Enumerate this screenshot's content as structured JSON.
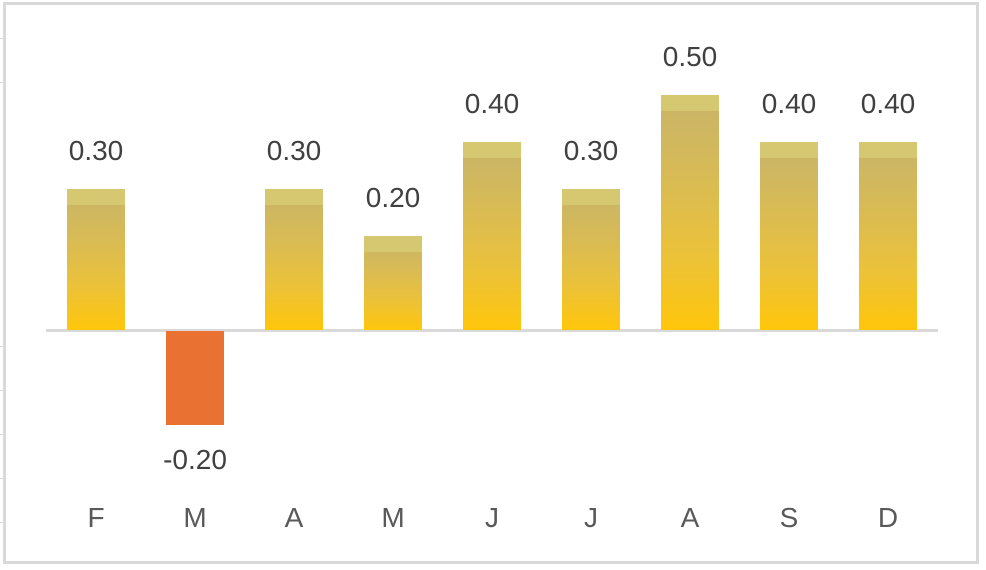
{
  "chart_data": {
    "type": "bar",
    "title": "",
    "xlabel": "",
    "ylabel": "",
    "categories": [
      "F",
      "M",
      "A",
      "M",
      "J",
      "J",
      "A",
      "S",
      "D"
    ],
    "values": [
      0.3,
      -0.2,
      0.3,
      0.2,
      0.4,
      0.3,
      0.5,
      0.4,
      0.4
    ],
    "value_labels": [
      "0.30",
      "-0.20",
      "0.30",
      "0.20",
      "0.40",
      "0.30",
      "0.50",
      "0.40",
      "0.40"
    ],
    "ylim": [
      -0.25,
      0.6
    ],
    "grid": false,
    "legend": null,
    "colors": {
      "positive_gradient_top": "#c8b46a",
      "positive_gradient_bottom": "#ffc60a",
      "positive_cap": "#d6c870",
      "negative": "#e97132",
      "axis": "#d9d9d9",
      "label": "#404040"
    }
  }
}
